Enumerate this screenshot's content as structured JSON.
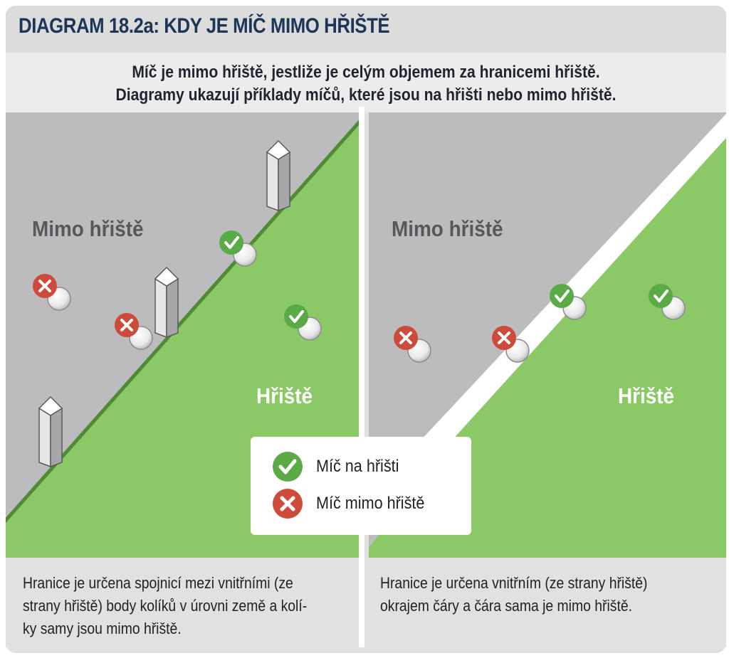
{
  "header": {
    "title": "DIAGRAM 18.2a: KDY JE MÍČ MIMO HŘIŠTĚ"
  },
  "intro": {
    "line1": "Míč je mimo hřiště, jestliže je celým objemem za hranicemi hřiště.",
    "line2": "Diagramy ukazují příklady míčů, které jsou na hřišti nebo mimo hřiště."
  },
  "left_panel": {
    "out_label": "Mimo hřiště",
    "in_label": "Hřiště",
    "caption_line1": "Hranice je určena spojnicí mezi vnitřními (ze",
    "caption_line2": "strany hřiště) body kolíků v úrovni země a kolí-",
    "caption_line3": "ky samy jsou mimo hřiště."
  },
  "right_panel": {
    "out_label": "Mimo hřiště",
    "in_label": "Hřiště",
    "caption_line1": "Hranice je určena vnitřním (ze strany hřiště)",
    "caption_line2": "okrajem čáry a čára sama je mimo hřiště."
  },
  "legend": {
    "in_label": "Míč na hřišti",
    "out_label": "Míč mimo hřiště",
    "in_icon": "check-icon",
    "out_icon": "cross-icon"
  },
  "colors": {
    "out_of_bounds": "#bcbcbf",
    "in_bounds": "#8bc866",
    "boundary_line": "#4f8a36",
    "check": "#5aaa46",
    "cross": "#cd4b3a",
    "title": "#1d3557"
  }
}
